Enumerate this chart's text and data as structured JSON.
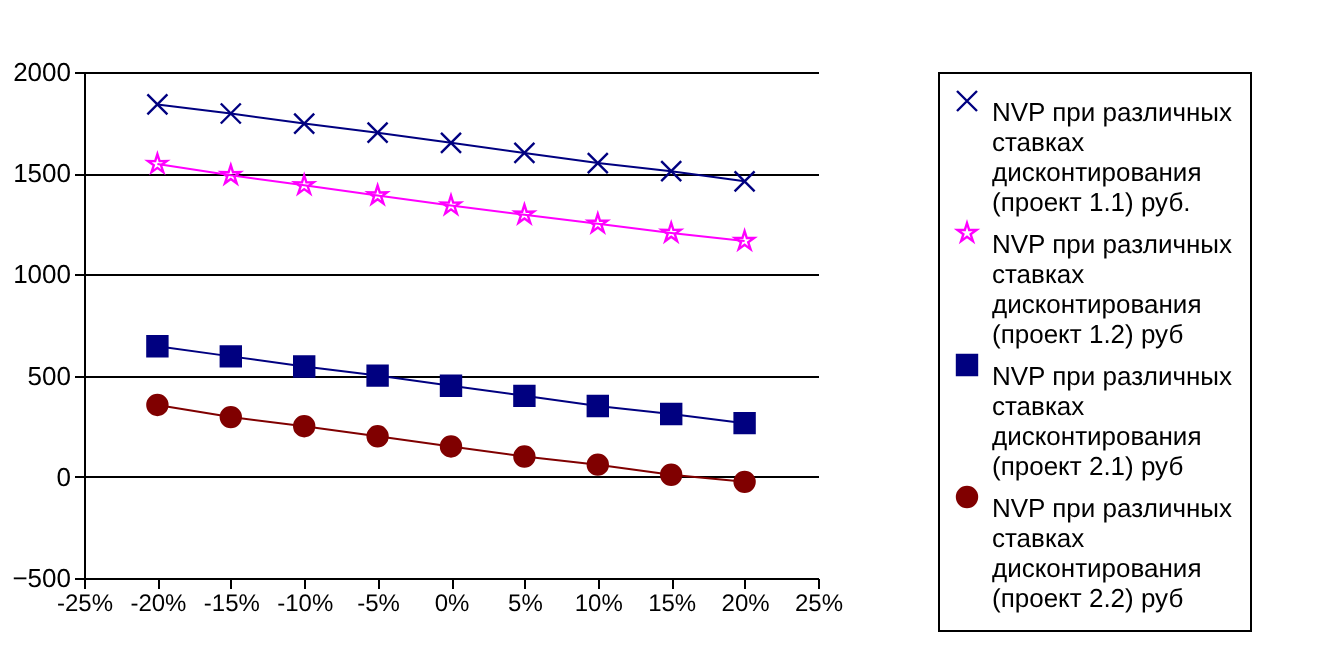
{
  "chart_data": {
    "type": "line",
    "x": [
      -20,
      -15,
      -10,
      -5,
      0,
      5,
      10,
      15,
      20
    ],
    "series": [
      {
        "name": "NVP при различных ставках дисконтирования (проект 1.1) руб.",
        "color": "#000080",
        "marker": "cross",
        "values": [
          1840,
          1795,
          1745,
          1700,
          1650,
          1600,
          1550,
          1510,
          1460
        ]
      },
      {
        "name": "NVP при различных ставках дисконтирования (проект 1.2) руб",
        "color": "#ff00ff",
        "marker": "star",
        "values": [
          1545,
          1490,
          1440,
          1390,
          1340,
          1295,
          1250,
          1205,
          1165
        ]
      },
      {
        "name": "NVP при различных ставках дисконтирования (проект 2.1) руб",
        "color": "#000080",
        "marker": "square",
        "values": [
          645,
          595,
          545,
          500,
          450,
          400,
          350,
          310,
          265
        ]
      },
      {
        "name": "NVP при различных ставках дисконтирования (проект 2.2) руб",
        "color": "#800000",
        "marker": "circle",
        "values": [
          355,
          295,
          250,
          200,
          150,
          100,
          60,
          10,
          -25
        ]
      }
    ],
    "xlim": [
      -25,
      25
    ],
    "xticks": [
      {
        "value": -25,
        "label": "-25%"
      },
      {
        "value": -20,
        "label": "-20%"
      },
      {
        "value": -15,
        "label": "-15%"
      },
      {
        "value": -10,
        "label": "-10%"
      },
      {
        "value": -5,
        "label": "-5%"
      },
      {
        "value": 0,
        "label": "0%"
      },
      {
        "value": 5,
        "label": "5%"
      },
      {
        "value": 10,
        "label": "10%"
      },
      {
        "value": 15,
        "label": "15%"
      },
      {
        "value": 20,
        "label": "20%"
      },
      {
        "value": 25,
        "label": "25%"
      }
    ],
    "ylim": [
      -500,
      2000
    ],
    "yticks": [
      -500,
      0,
      500,
      1000,
      1500,
      2000
    ],
    "grid": "y",
    "legend": "right"
  }
}
